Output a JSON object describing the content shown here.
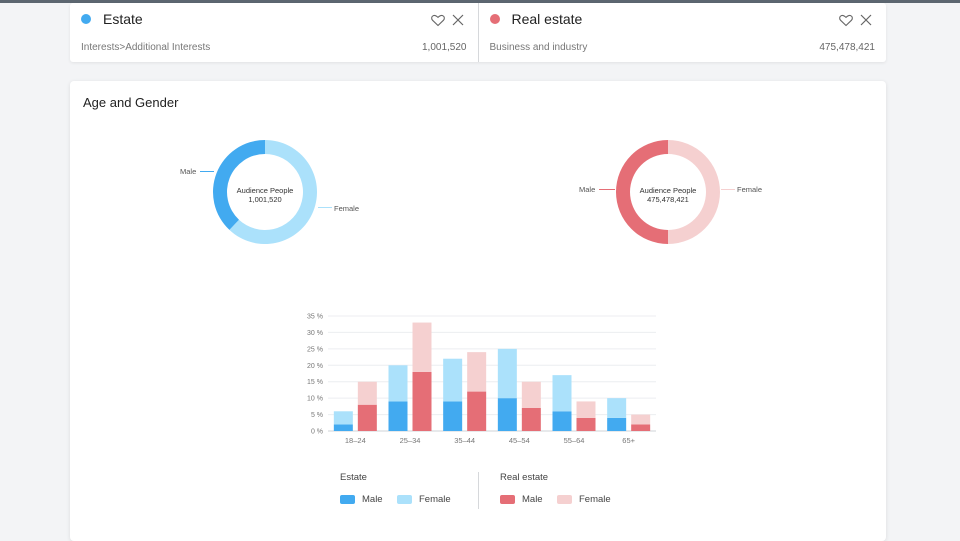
{
  "colors": {
    "estate_male": "#42aaf0",
    "estate_female": "#abe1fb",
    "realestate_male": "#e56e76",
    "realestate_female": "#f5d0d0",
    "estate_dot": "#42aaf0",
    "realestate_dot": "#e56e76"
  },
  "cards": [
    {
      "name": "Estate",
      "path": "Interests>Additional Interests",
      "count": "1,001,520"
    },
    {
      "name": "Real estate",
      "path": "Business and industry",
      "count": "475,478,421"
    }
  ],
  "panel": {
    "title": "Age and Gender"
  },
  "donuts": [
    {
      "center_label": "Audience People",
      "center_value": "1,001,520",
      "male_label": "Male",
      "female_label": "Female",
      "male_share": 0.38,
      "female_share": 0.62
    },
    {
      "center_label": "Audience People",
      "center_value": "475,478,421",
      "male_label": "Male",
      "female_label": "Female",
      "male_share": 0.5,
      "female_share": 0.5
    }
  ],
  "chart_data": {
    "type": "bar",
    "categories": [
      "18–24",
      "25–34",
      "35–44",
      "45–54",
      "55–64",
      "65+"
    ],
    "y_ticks": [
      "0 %",
      "5 %",
      "10 %",
      "15 %",
      "20 %",
      "25 %",
      "30 %",
      "35 %"
    ],
    "ylim": [
      0,
      35
    ],
    "series": [
      {
        "name": "Estate Male",
        "stack": "Estate",
        "values": [
          2,
          9,
          9,
          10,
          6,
          4
        ]
      },
      {
        "name": "Estate Female",
        "stack": "Estate",
        "values": [
          4,
          11,
          13,
          15,
          11,
          6
        ]
      },
      {
        "name": "Real estate Male",
        "stack": "Real estate",
        "values": [
          8,
          18,
          12,
          7,
          4,
          2
        ]
      },
      {
        "name": "Real estate Female",
        "stack": "Real estate",
        "values": [
          7,
          15,
          12,
          8,
          5,
          3
        ]
      }
    ]
  },
  "legend": {
    "groups": [
      {
        "title": "Estate",
        "male": "Male",
        "female": "Female"
      },
      {
        "title": "Real estate",
        "male": "Male",
        "female": "Female"
      }
    ]
  }
}
